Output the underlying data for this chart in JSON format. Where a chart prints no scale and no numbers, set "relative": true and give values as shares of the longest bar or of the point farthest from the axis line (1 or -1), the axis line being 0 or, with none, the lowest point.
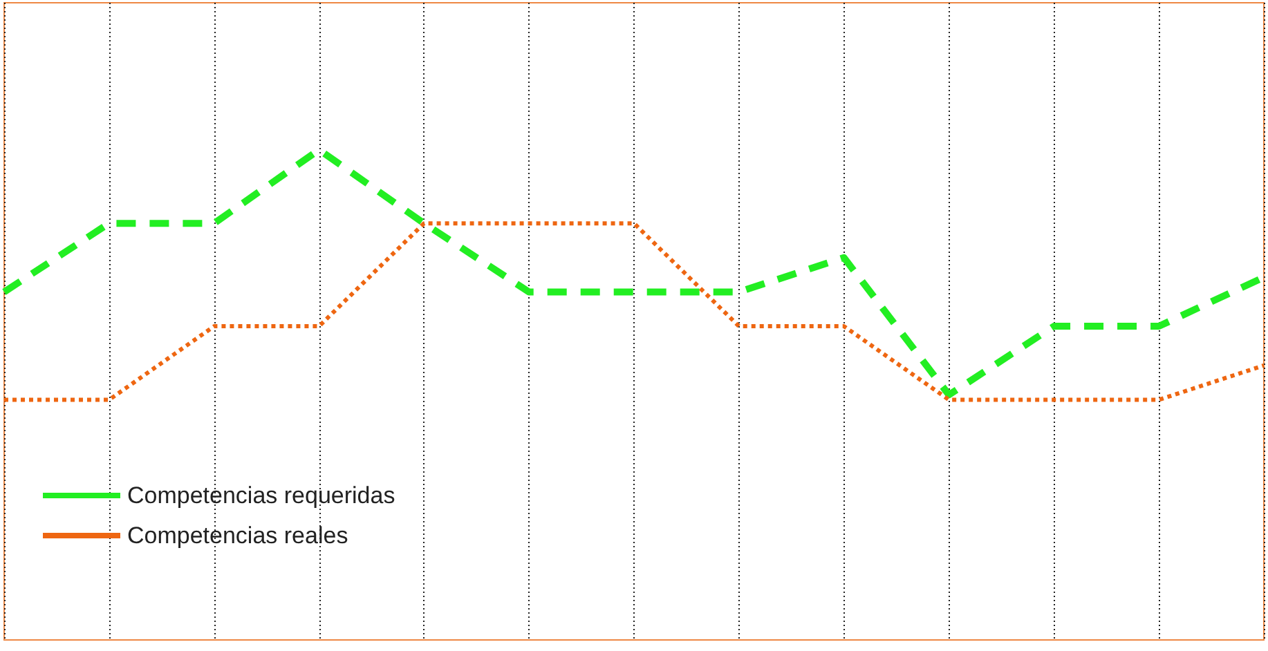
{
  "chart_data": {
    "type": "line",
    "relative": true,
    "categories": [
      null,
      null,
      null,
      null,
      null,
      null,
      null,
      null,
      null,
      null,
      null,
      null,
      null
    ],
    "series": [
      {
        "name": "Competencias requeridas",
        "color": "#22ee22",
        "line_style": "dashed",
        "values": [
          0.71,
          0.85,
          0.85,
          1,
          0.85,
          0.71,
          0.71,
          0.71,
          0.78,
          0.5,
          0.64,
          0.64,
          0.74
        ]
      },
      {
        "name": "Competencias reales",
        "color": "#ee6611",
        "line_style": "dotted",
        "values": [
          0.49,
          0.49,
          0.64,
          0.64,
          0.85,
          0.85,
          0.85,
          0.64,
          0.64,
          0.49,
          0.49,
          0.49,
          0.56
        ]
      }
    ],
    "grid": "x",
    "legend": "bottom left",
    "marker": "none"
  }
}
